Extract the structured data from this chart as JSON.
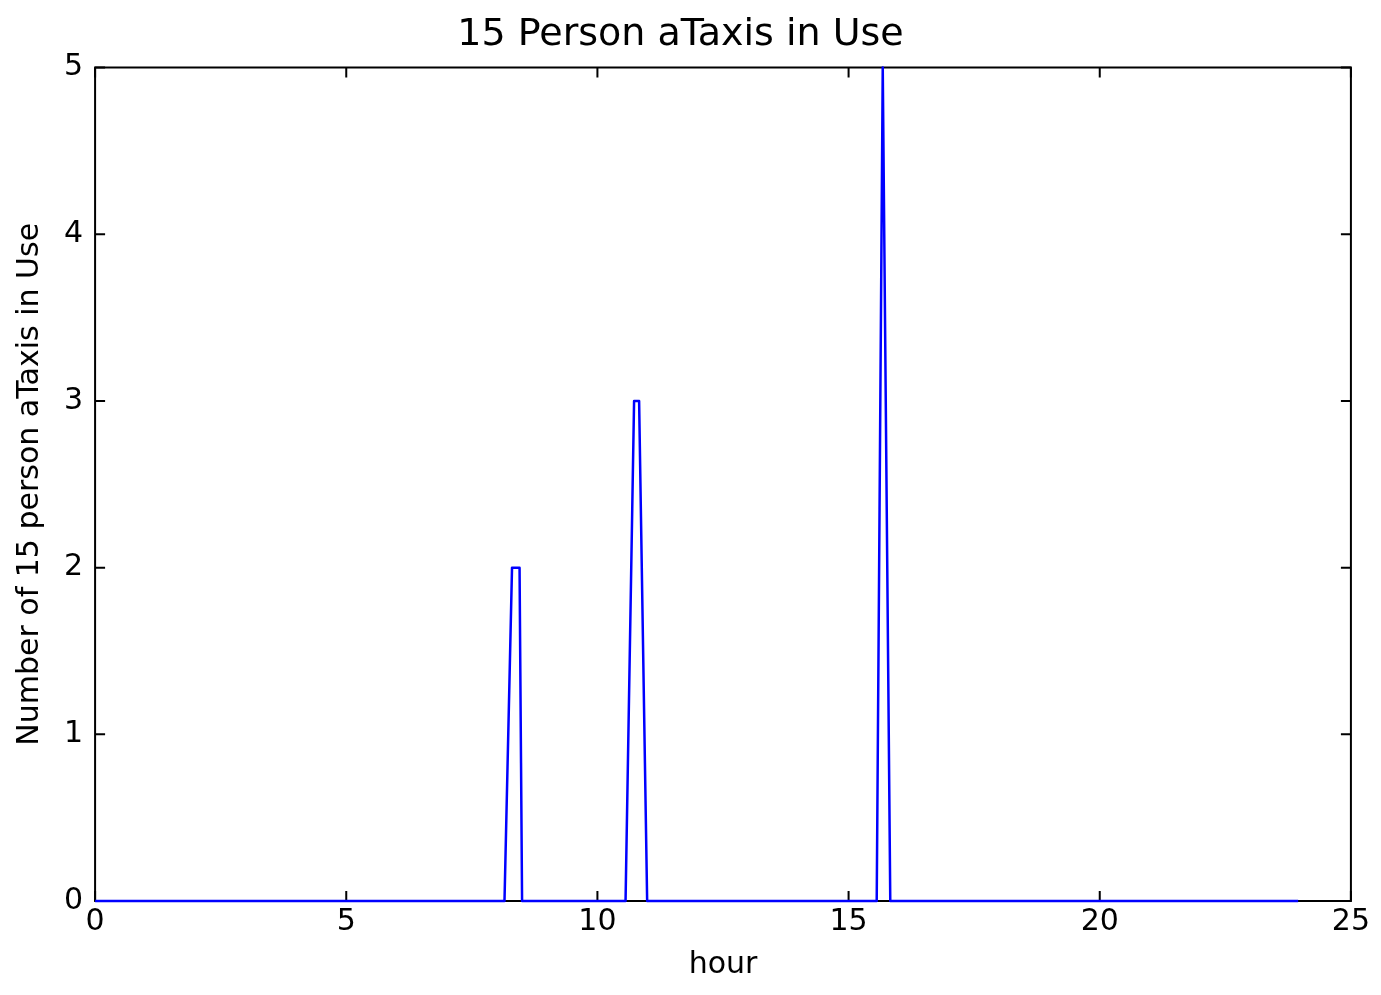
{
  "chart_data": {
    "type": "line",
    "title": "15 Person aTaxis in Use",
    "xlabel": "hour",
    "ylabel": "Number of 15 person aTaxis in Use",
    "series": [
      {
        "color": "#0000ff",
        "x": [
          0,
          8.15,
          8.3,
          8.45,
          8.5,
          10.56,
          10.73,
          10.83,
          10.99,
          15.56,
          15.68,
          15.83,
          23.95
        ],
        "values": [
          0,
          0,
          2,
          2,
          0,
          0,
          3,
          3,
          0,
          0,
          5,
          0,
          0
        ]
      }
    ],
    "xlim": [
      0,
      25
    ],
    "xticks": [
      0,
      5,
      10,
      15,
      20,
      25
    ],
    "ylim": [
      0,
      5
    ],
    "yticks": [
      0,
      1,
      2,
      3,
      4,
      5
    ],
    "grid": false,
    "legend": false,
    "marker": "none",
    "line_style": "solid"
  }
}
